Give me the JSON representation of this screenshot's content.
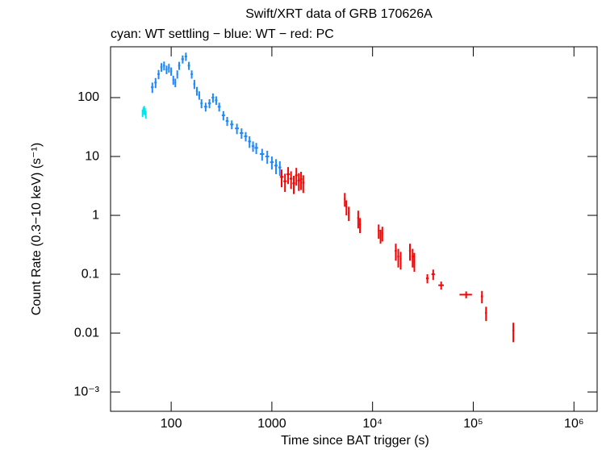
{
  "chart_data": {
    "type": "scatter",
    "title": "Swift/XRT data of GRB 170626A",
    "subtitle": "cyan: WT settling − blue: WT − red: PC",
    "x_label": "Time since BAT trigger (s)",
    "y_label": "Count Rate (0.3−10 keV) (s⁻¹)",
    "x_log": true,
    "y_log": true,
    "xlim": [
      25,
      1700000
    ],
    "ylim": [
      0.00047,
      730
    ],
    "xticks": [
      100,
      1000,
      {
        "value": 10000,
        "label": "10⁴"
      },
      {
        "value": 100000,
        "label": "10⁵"
      },
      {
        "value": 1000000,
        "label": "10⁶"
      }
    ],
    "yticks": [
      100,
      10,
      1,
      0.1,
      0.01,
      {
        "value": 0.001,
        "label": "10⁻³"
      }
    ],
    "series": [
      {
        "color": "#00e5ee",
        "x": [
          52,
          53,
          54,
          55,
          56
        ],
        "values": [
          55,
          60,
          63,
          58,
          52
        ],
        "yerr": [
          8,
          9,
          9,
          8,
          8
        ],
        "xerr": [
          0.5,
          0.5,
          0.5,
          0.5,
          0.5
        ]
      },
      {
        "color": "#1e88ff",
        "x": [
          65,
          70,
          75,
          80,
          85,
          90,
          95,
          100,
          105,
          110,
          115,
          120,
          130,
          140,
          150,
          160,
          170,
          180,
          190,
          200,
          220,
          240,
          260,
          280,
          300,
          330,
          360,
          400,
          450,
          500,
          550,
          600,
          650,
          700,
          800,
          900,
          1000,
          1100,
          1200
        ],
        "values": [
          150,
          180,
          250,
          330,
          350,
          300,
          320,
          280,
          200,
          180,
          250,
          350,
          450,
          500,
          350,
          250,
          170,
          130,
          110,
          80,
          70,
          80,
          100,
          90,
          70,
          50,
          40,
          35,
          30,
          25,
          22,
          18,
          15,
          14,
          11,
          10,
          8,
          7,
          6.5
        ],
        "yerr": [
          30,
          35,
          45,
          55,
          60,
          50,
          55,
          45,
          35,
          30,
          40,
          55,
          70,
          80,
          55,
          40,
          30,
          22,
          18,
          14,
          12,
          14,
          18,
          15,
          12,
          9,
          7,
          6,
          6,
          5,
          4,
          4,
          3,
          3,
          2.5,
          2.5,
          2,
          2,
          1.8
        ],
        "xerr": [
          2,
          2,
          2,
          2,
          2,
          2,
          2,
          2,
          2,
          2,
          2,
          3,
          4,
          4,
          4,
          4,
          4,
          4,
          4,
          5,
          8,
          8,
          8,
          8,
          10,
          12,
          12,
          15,
          20,
          20,
          20,
          20,
          20,
          30,
          40,
          40,
          40,
          40,
          40
        ]
      },
      {
        "color": "#ff0000",
        "x": [
          1250,
          1350,
          1450,
          1550,
          1650,
          1750,
          1850,
          1950,
          2050,
          5300,
          5500,
          5800,
          7200,
          7500,
          11500,
          12000,
          12500,
          17000,
          18000,
          19000,
          23500,
          25000,
          26000,
          35000,
          40000,
          48000,
          85000,
          122000,
          134000,
          250000
        ],
        "values": [
          4.5,
          3.8,
          5,
          4.2,
          3.5,
          4.8,
          3.9,
          4.1,
          3.6,
          1.9,
          1.4,
          1.1,
          0.9,
          0.7,
          0.55,
          0.45,
          0.5,
          0.25,
          0.2,
          0.18,
          0.25,
          0.2,
          0.17,
          0.085,
          0.1,
          0.065,
          0.045,
          0.042,
          0.022,
          0.011
        ],
        "yerr": [
          1.5,
          1.3,
          1.6,
          1.4,
          1.2,
          1.6,
          1.3,
          1.4,
          1.2,
          0.5,
          0.4,
          0.3,
          0.3,
          0.2,
          0.15,
          0.12,
          0.14,
          0.08,
          0.07,
          0.06,
          0.08,
          0.07,
          0.06,
          0.015,
          0.02,
          0.01,
          0.006,
          0.01,
          0.006,
          0.004
        ],
        "xerr": [
          50,
          50,
          50,
          50,
          50,
          50,
          50,
          50,
          50,
          100,
          100,
          100,
          150,
          150,
          200,
          200,
          200,
          400,
          400,
          400,
          500,
          500,
          500,
          1000,
          1500,
          3000,
          12000,
          3000,
          3000,
          5000
        ]
      }
    ]
  }
}
